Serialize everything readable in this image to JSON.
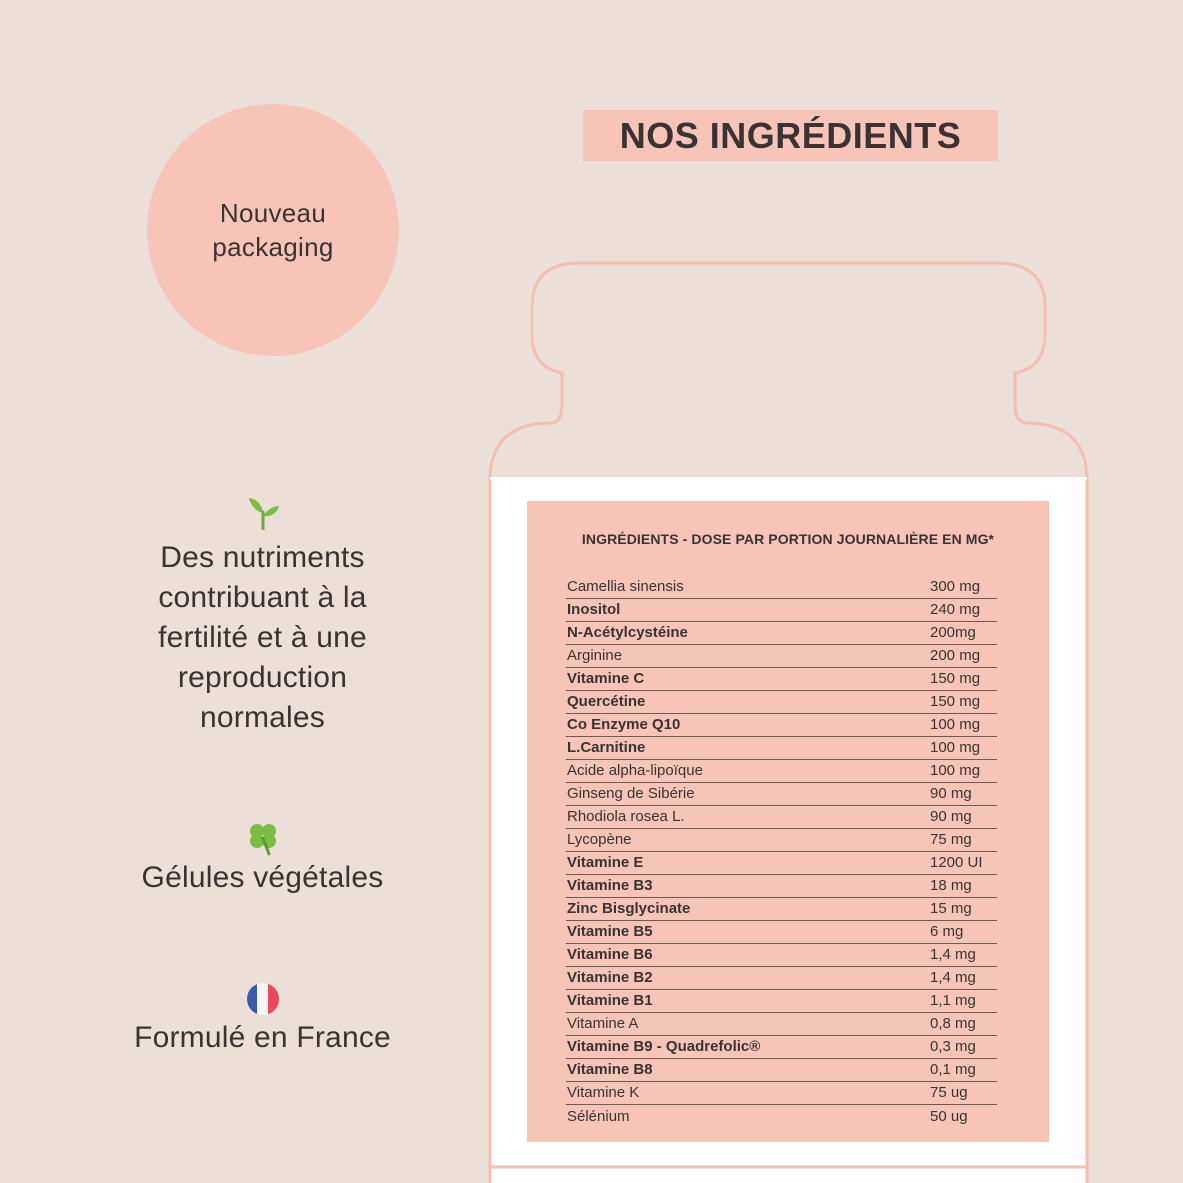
{
  "badge": {
    "line1": "Nouveau",
    "line2": "packaging"
  },
  "title": "NOS INGRÉDIENTS",
  "features": [
    {
      "icon": "sprout-icon",
      "lines": [
        "Des nutriments",
        "contribuant à la",
        "fertilité et à une",
        "reproduction",
        "normales"
      ]
    },
    {
      "icon": "clover-icon",
      "lines": [
        "Gélules végétales"
      ]
    },
    {
      "icon": "france-flag-icon",
      "lines": [
        "Formulé en France"
      ]
    }
  ],
  "label": {
    "heading": "INGRÉDIENTS - DOSE PAR PORTION JOURNALIÈRE EN MG*",
    "ingredients": [
      {
        "name": "Camellia sinensis",
        "dose": "300 mg",
        "bold": false
      },
      {
        "name": "Inositol",
        "dose": "240 mg",
        "bold": true
      },
      {
        "name": "N-Acétylcystéine",
        "dose": "200mg",
        "bold": true
      },
      {
        "name": "Arginine",
        "dose": "200 mg",
        "bold": false
      },
      {
        "name": "Vitamine C",
        "dose": "150 mg",
        "bold": true
      },
      {
        "name": "Quercétine",
        "dose": "150 mg",
        "bold": true
      },
      {
        "name": "Co Enzyme Q10",
        "dose": "100 mg",
        "bold": true
      },
      {
        "name": "L.Carnitine",
        "dose": "100 mg",
        "bold": true
      },
      {
        "name": "Acide alpha-lipoïque",
        "dose": "100 mg",
        "bold": false
      },
      {
        "name": "Ginseng de Sibérie",
        "dose": "90 mg",
        "bold": false
      },
      {
        "name": "Rhodiola rosea L.",
        "dose": "90 mg",
        "bold": false
      },
      {
        "name": "Lycopène",
        "dose": "75 mg",
        "bold": false
      },
      {
        "name": "Vitamine E",
        "dose": "1200 UI",
        "bold": true
      },
      {
        "name": "Vitamine B3",
        "dose": "18 mg",
        "bold": true
      },
      {
        "name": "Zinc Bisglycinate",
        "dose": "15 mg",
        "bold": true
      },
      {
        "name": "Vitamine B5",
        "dose": "6 mg",
        "bold": true
      },
      {
        "name": "Vitamine B6",
        "dose": "1,4 mg",
        "bold": true
      },
      {
        "name": "Vitamine B2",
        "dose": "1,4 mg",
        "bold": true
      },
      {
        "name": "Vitamine B1",
        "dose": "1,1 mg",
        "bold": true
      },
      {
        "name": "Vitamine A",
        "dose": "0,8 mg",
        "bold": false
      },
      {
        "name": "Vitamine B9 - Quadrefolic®",
        "dose": "0,3 mg",
        "bold": true
      },
      {
        "name": "Vitamine B8",
        "dose": "0,1 mg",
        "bold": true
      },
      {
        "name": "Vitamine K",
        "dose": "75 ug",
        "bold": false
      },
      {
        "name": "Sélénium",
        "dose": "50 ug",
        "bold": false
      }
    ]
  },
  "colors": {
    "background": "#ebdfd8",
    "accent": "#f6c5b7",
    "jar_outline": "#f4bfae",
    "text": "#3a3331"
  }
}
